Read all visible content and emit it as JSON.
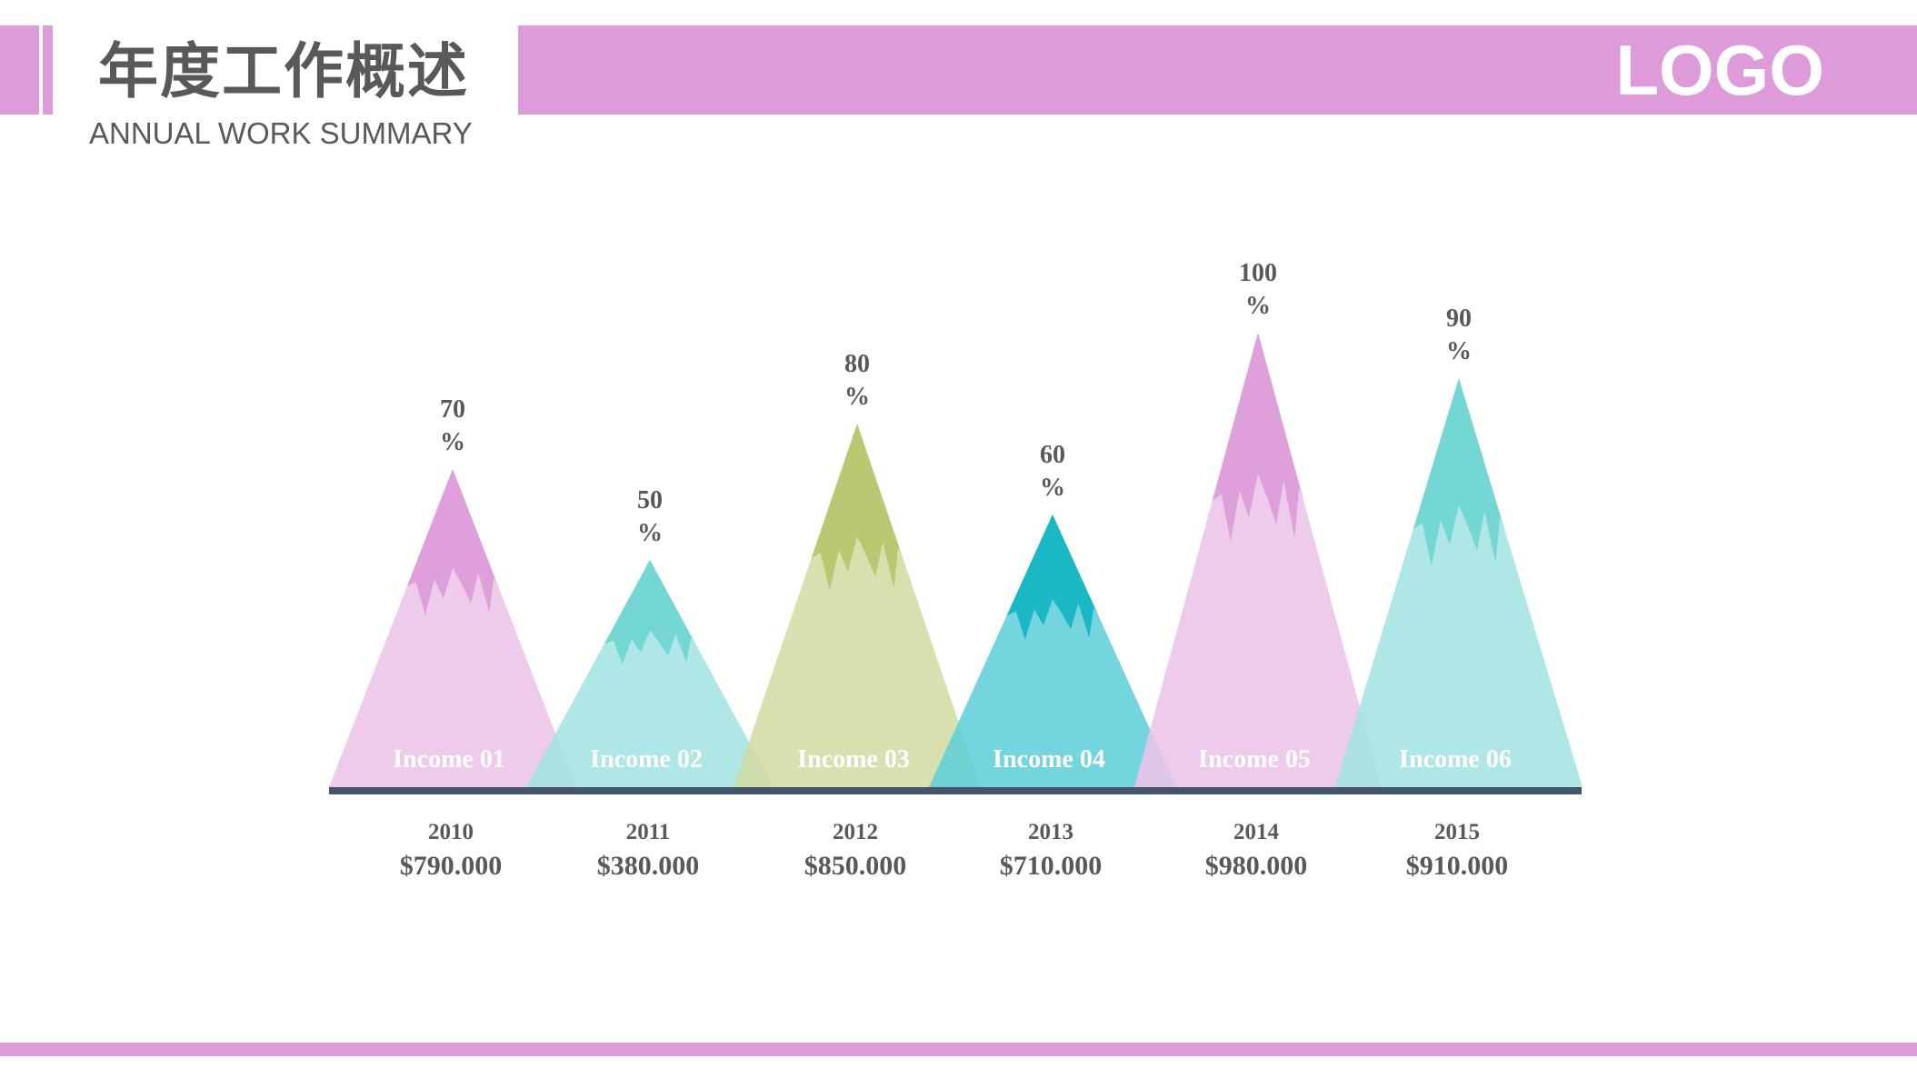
{
  "header": {
    "title": "年度工作概述",
    "subtitle": "ANNUAL WORK SUMMARY",
    "logo": "LOGO"
  },
  "colors": {
    "accent": "#dd9cd9",
    "axis": "#44546a",
    "text": "#595959"
  },
  "chart_data": {
    "type": "bar",
    "categories": [
      "Income 01",
      "Income 02",
      "Income 03",
      "Income 04",
      "Income 05",
      "Income 06"
    ],
    "values": [
      70,
      50,
      80,
      60,
      100,
      90
    ],
    "value_suffix": "%",
    "years": [
      "2010",
      "2011",
      "2012",
      "2013",
      "2014",
      "2015"
    ],
    "amounts": [
      "$790.000",
      "$380.000",
      "$850.000",
      "$710.000",
      "$980.000",
      "$910.000"
    ],
    "bar_colors": [
      {
        "light": "#ecc4e8",
        "dark": "#dd9cd9"
      },
      {
        "light": "#a3e4e2",
        "dark": "#72d6d3"
      },
      {
        "light": "#d3dca4",
        "dark": "#bac56f"
      },
      {
        "light": "#62cfd9",
        "dark": "#15b5c3"
      },
      {
        "light": "#ecc4e8",
        "dark": "#dd9cd9"
      },
      {
        "light": "#a3e4e2",
        "dark": "#72d6d3"
      }
    ],
    "ylim": [
      0,
      100
    ],
    "grid": false,
    "legend": "none"
  }
}
